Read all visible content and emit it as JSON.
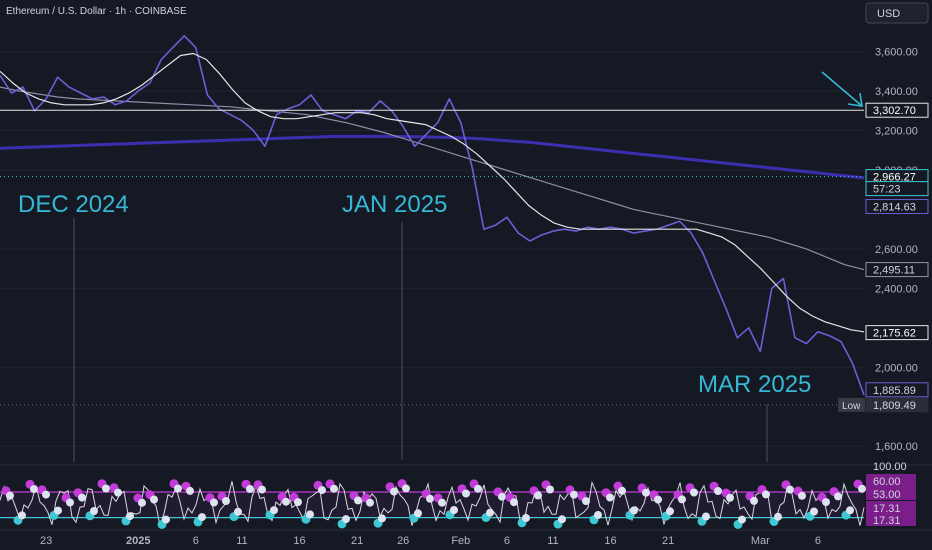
{
  "header": {
    "symbol_title": "Ethereum / U.S. Dollar · 1h · COINBASE",
    "currency_button": "USD"
  },
  "annotations": {
    "dec": "DEC 2024",
    "jan": "JAN 2025",
    "mar": "MAR 2025"
  },
  "colors": {
    "background": "#151924",
    "price": "#6b5fd6",
    "ma_white": "#e6e6e6",
    "ma_grey": "#8f8fa3",
    "ma_purple": "#3b2fb0",
    "annotation": "#36b7d6",
    "rsi_cyan": "#3ec8d3",
    "rsi_magenta": "#c23ad9",
    "level_dotted": "#3ec8d3"
  },
  "chart_data": {
    "type": "line",
    "ylim": [
      1520,
      3760
    ],
    "price_ticks": [
      "3,600.00",
      "3,400.00",
      "3,200.00",
      "3,000.00",
      "2,600.00",
      "2,400.00",
      "2,000.00",
      "1,600.00"
    ],
    "price_tick_values": [
      3600,
      3400,
      3200,
      3000,
      2600,
      2400,
      2000,
      1600
    ],
    "x_ticks": [
      "23",
      "2025",
      "6",
      "11",
      "16",
      "21",
      "26",
      "Feb",
      "6",
      "11",
      "16",
      "21",
      "Mar",
      "6"
    ],
    "x_tick_index": [
      4,
      12,
      17,
      21,
      26,
      31,
      35,
      40,
      44,
      48,
      53,
      58,
      66,
      71
    ],
    "price_points": [
      3480,
      3390,
      3420,
      3300,
      3360,
      3470,
      3420,
      3390,
      3360,
      3370,
      3330,
      3350,
      3400,
      3440,
      3560,
      3620,
      3680,
      3620,
      3380,
      3310,
      3280,
      3250,
      3200,
      3120,
      3280,
      3310,
      3330,
      3380,
      3300,
      3280,
      3260,
      3300,
      3290,
      3350,
      3300,
      3220,
      3120,
      3180,
      3240,
      3360,
      3240,
      3010,
      2700,
      2720,
      2760,
      2680,
      2640,
      2670,
      2690,
      2700,
      2690,
      2710,
      2700,
      2710,
      2700,
      2680,
      2690,
      2700,
      2720,
      2740,
      2680,
      2580,
      2440,
      2300,
      2150,
      2200,
      2080,
      2400,
      2450,
      2150,
      2120,
      2180,
      2160,
      2130,
      2020,
      1860
    ],
    "ma_white_points": [
      3500,
      3440,
      3390,
      3360,
      3340,
      3330,
      3330,
      3330,
      3340,
      3360,
      3390,
      3430,
      3480,
      3530,
      3580,
      3590,
      3560,
      3490,
      3410,
      3340,
      3300,
      3270,
      3260,
      3260,
      3270,
      3280,
      3290,
      3290,
      3290,
      3280,
      3260,
      3250,
      3240,
      3230,
      3200,
      3170,
      3130,
      3080,
      3020,
      2960,
      2890,
      2820,
      2770,
      2730,
      2710,
      2700,
      2700,
      2700,
      2700,
      2700,
      2700,
      2700,
      2700,
      2700,
      2700,
      2680,
      2660,
      2620,
      2560,
      2500,
      2430,
      2360,
      2300,
      2260,
      2230,
      2210,
      2190,
      2180
    ],
    "ma_grey_points": [
      3420,
      3400,
      3385,
      3370,
      3360,
      3355,
      3350,
      3345,
      3340,
      3335,
      3330,
      3325,
      3320,
      3310,
      3300,
      3290,
      3280,
      3260,
      3240,
      3215,
      3190,
      3160,
      3130,
      3100,
      3070,
      3040,
      3010,
      2980,
      2950,
      2920,
      2890,
      2860,
      2830,
      2800,
      2780,
      2760,
      2740,
      2720,
      2700,
      2680,
      2660,
      2630,
      2600,
      2560,
      2520,
      2495
    ],
    "ma_purple_points": [
      3110,
      3115,
      3120,
      3125,
      3130,
      3135,
      3140,
      3145,
      3150,
      3155,
      3160,
      3165,
      3170,
      3170,
      3170,
      3168,
      3165,
      3160,
      3150,
      3140,
      3125,
      3110,
      3095,
      3080,
      3065,
      3050,
      3035,
      3020,
      3005,
      2990,
      2975,
      2960
    ],
    "price_labels": [
      {
        "value": 3302.7,
        "text": "3,302.70",
        "style": "white"
      },
      {
        "value": 2966.27,
        "text": "2,966.27",
        "style": "cyan"
      },
      {
        "value": 2900,
        "text": "57:23",
        "style": "countdown"
      },
      {
        "value": 2814.63,
        "text": "2,814.63",
        "style": "purple"
      },
      {
        "value": 2495.11,
        "text": "2,495.11",
        "style": "grey"
      },
      {
        "value": 2175.62,
        "text": "2,175.62",
        "style": "white"
      },
      {
        "value": 1885.89,
        "text": "1,885.89",
        "style": "purple"
      },
      {
        "value": 1809.49,
        "text": "1,809.49",
        "style": "low"
      }
    ],
    "low_tag": "Low",
    "rsi": {
      "ticks": [
        "100.00",
        "60.00",
        "53.00",
        "17.31",
        "17.31"
      ],
      "tick_values": [
        100,
        60,
        53,
        17.31,
        17.31
      ],
      "ylim": [
        0,
        100
      ]
    }
  }
}
